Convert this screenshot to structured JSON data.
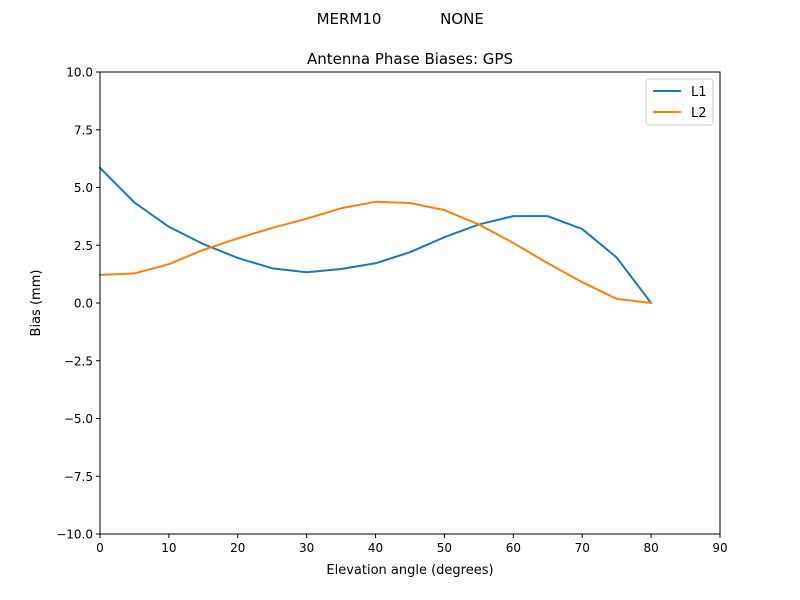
{
  "figure": {
    "suptitle_left": "MERM10",
    "suptitle_right": "NONE"
  },
  "chart_data": {
    "type": "line",
    "title": "Antenna Phase Biases: GPS",
    "xlabel": "Elevation angle (degrees)",
    "ylabel": "Bias (mm)",
    "xlim": [
      0,
      90
    ],
    "ylim": [
      -10,
      10
    ],
    "xticks": [
      0,
      10,
      20,
      30,
      40,
      50,
      60,
      70,
      80,
      90
    ],
    "xtick_labels": [
      "0",
      "10",
      "20",
      "30",
      "40",
      "50",
      "60",
      "70",
      "80",
      "90"
    ],
    "yticks": [
      -10,
      -7.5,
      -5,
      -2.5,
      0,
      2.5,
      5,
      7.5,
      10
    ],
    "ytick_labels": [
      "−10.0",
      "−7.5",
      "−5.0",
      "−2.5",
      "0.0",
      "2.5",
      "5.0",
      "7.5",
      "10.0"
    ],
    "grid": false,
    "legend_position": "top-right",
    "x": [
      0,
      5,
      10,
      15,
      20,
      25,
      30,
      35,
      40,
      45,
      50,
      55,
      60,
      65,
      70,
      75,
      80
    ],
    "series": [
      {
        "name": "L1",
        "color": "#1f77b4",
        "values": [
          5.85,
          4.35,
          3.3,
          2.55,
          1.95,
          1.5,
          1.33,
          1.47,
          1.72,
          2.2,
          2.85,
          3.4,
          3.76,
          3.76,
          3.2,
          1.97,
          0.0
        ]
      },
      {
        "name": "L2",
        "color": "#ff7f0e",
        "values": [
          1.22,
          1.28,
          1.68,
          2.3,
          2.8,
          3.25,
          3.65,
          4.1,
          4.38,
          4.33,
          4.02,
          3.4,
          2.6,
          1.72,
          0.9,
          0.18,
          0.0
        ]
      }
    ]
  }
}
